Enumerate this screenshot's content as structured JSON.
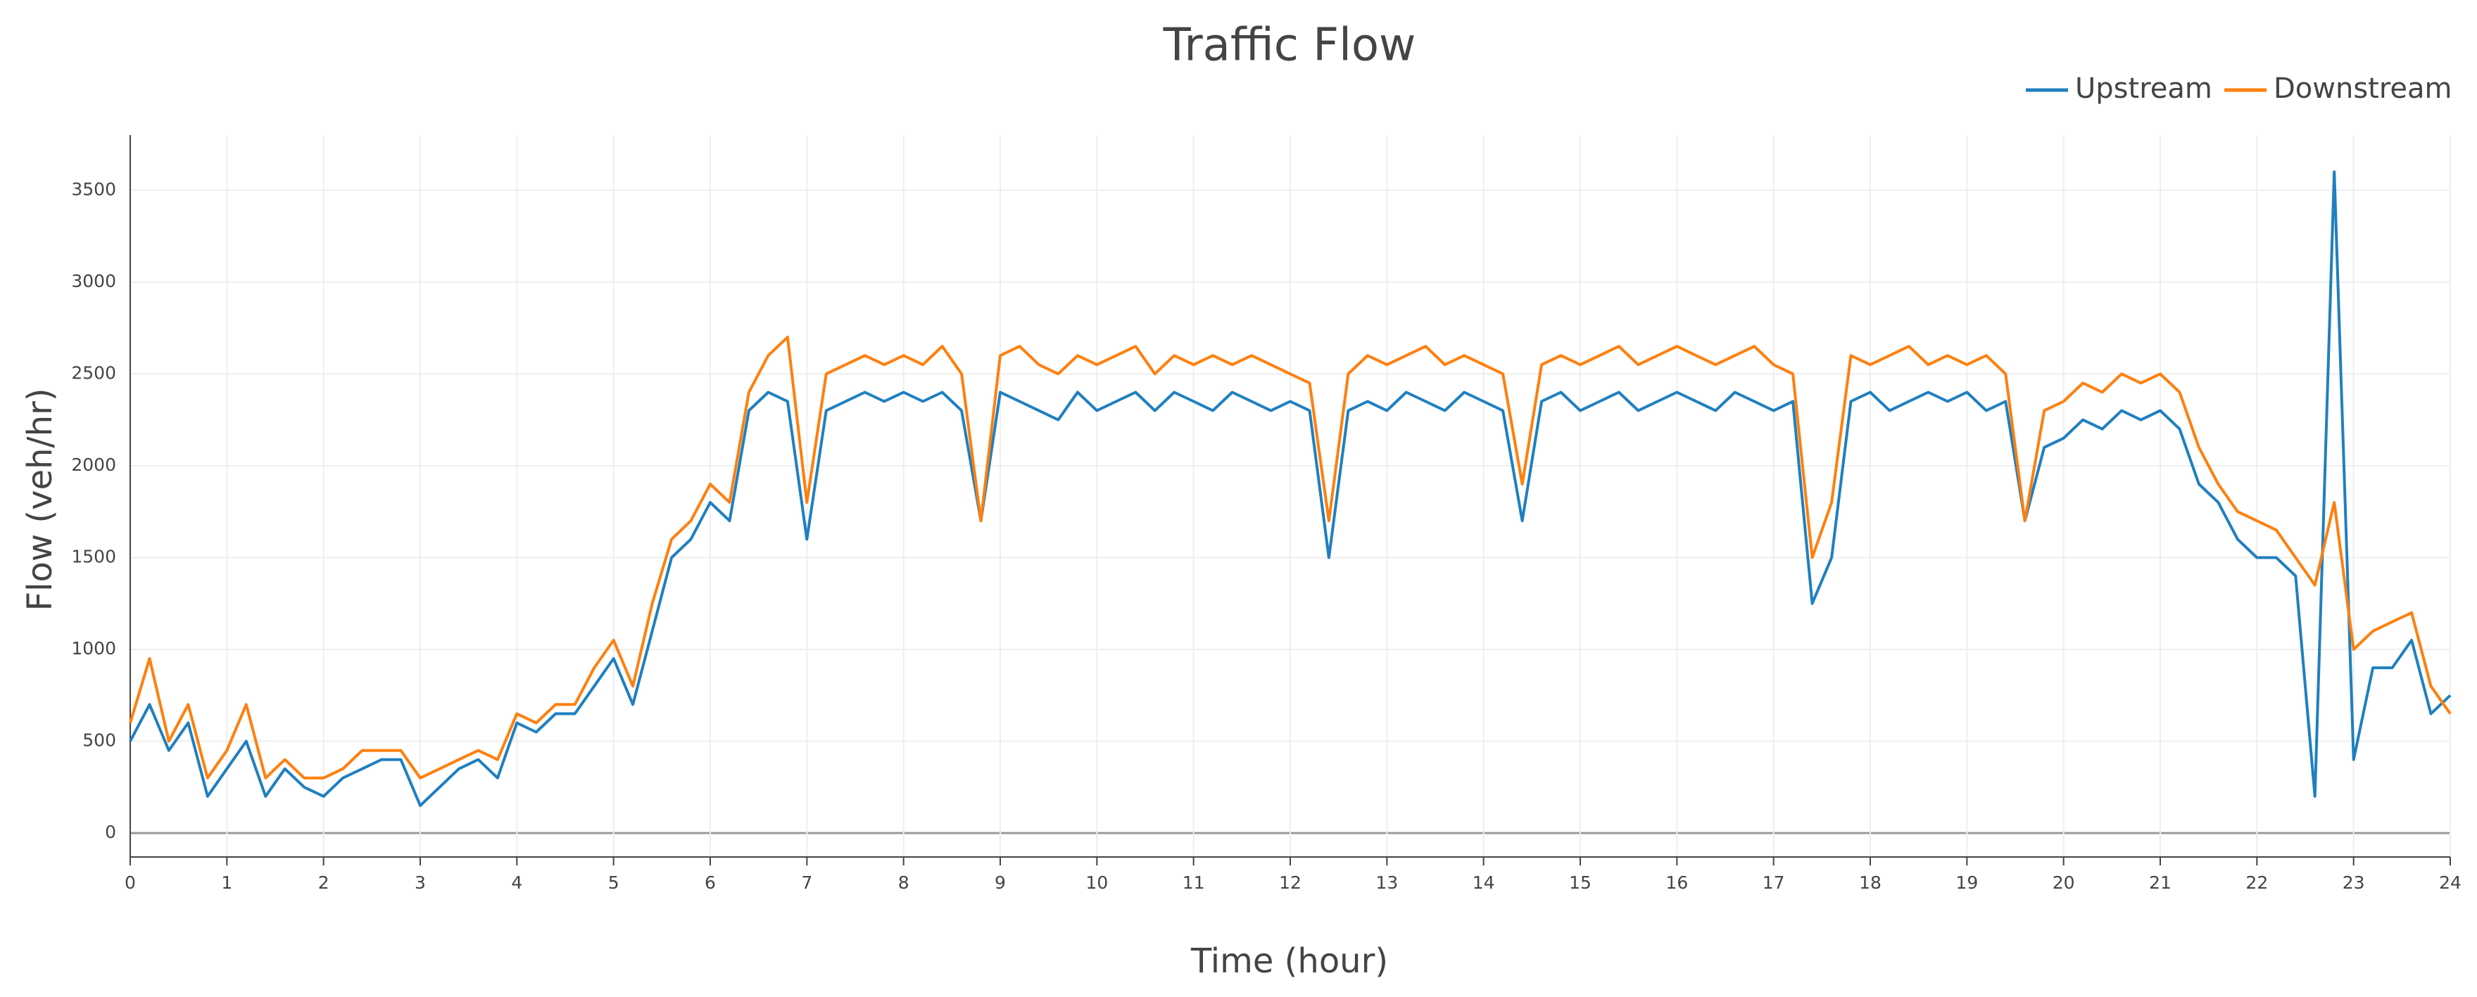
{
  "chart_data": {
    "type": "line",
    "title": "Traffic Flow",
    "x_label": "Time (hour)",
    "y_label": "Flow (veh/hr)",
    "x": [
      0,
      0.2,
      0.4,
      0.6,
      0.8,
      1,
      1.2,
      1.4,
      1.6,
      1.8,
      2,
      2.2,
      2.4,
      2.6,
      2.8,
      3,
      3.2,
      3.4,
      3.6,
      3.8,
      4,
      4.2,
      4.4,
      4.6,
      4.8,
      5,
      5.2,
      5.4,
      5.6,
      5.8,
      6,
      6.2,
      6.4,
      6.6,
      6.8,
      7,
      7.2,
      7.4,
      7.6,
      7.8,
      8,
      8.2,
      8.4,
      8.6,
      8.8,
      9,
      9.2,
      9.4,
      9.6,
      9.8,
      10,
      10.2,
      10.4,
      10.6,
      10.8,
      11,
      11.2,
      11.4,
      11.6,
      11.8,
      12,
      12.2,
      12.4,
      12.6,
      12.8,
      13,
      13.2,
      13.4,
      13.6,
      13.8,
      14,
      14.2,
      14.4,
      14.6,
      14.8,
      15,
      15.2,
      15.4,
      15.6,
      15.8,
      16,
      16.2,
      16.4,
      16.6,
      16.8,
      17,
      17.2,
      17.4,
      17.6,
      17.8,
      18,
      18.2,
      18.4,
      18.6,
      18.8,
      19,
      19.2,
      19.4,
      19.6,
      19.8,
      20,
      20.2,
      20.4,
      20.6,
      20.8,
      21,
      21.2,
      21.4,
      21.6,
      21.8,
      22,
      22.2,
      22.4,
      22.6,
      22.8,
      23,
      23.2,
      23.4,
      23.6,
      23.8,
      24
    ],
    "series": [
      {
        "name": "Upstream",
        "color": "#1f7fc0",
        "values": [
          500,
          700,
          450,
          600,
          200,
          350,
          500,
          200,
          350,
          250,
          200,
          300,
          350,
          400,
          400,
          150,
          250,
          350,
          400,
          300,
          600,
          550,
          650,
          650,
          800,
          950,
          700,
          1100,
          1500,
          1600,
          1800,
          1700,
          2300,
          2400,
          2350,
          1600,
          2300,
          2350,
          2400,
          2350,
          2400,
          2350,
          2400,
          2300,
          1700,
          2400,
          2350,
          2300,
          2250,
          2400,
          2300,
          2350,
          2400,
          2300,
          2400,
          2350,
          2300,
          2400,
          2350,
          2300,
          2350,
          2300,
          1500,
          2300,
          2350,
          2300,
          2400,
          2350,
          2300,
          2400,
          2350,
          2300,
          1700,
          2350,
          2400,
          2300,
          2350,
          2400,
          2300,
          2350,
          2400,
          2350,
          2300,
          2400,
          2350,
          2300,
          2350,
          1250,
          1500,
          2350,
          2400,
          2300,
          2350,
          2400,
          2350,
          2400,
          2300,
          2350,
          1700,
          2100,
          2150,
          2250,
          2200,
          2300,
          2250,
          2300,
          2200,
          1900,
          1800,
          1600,
          1500,
          1500,
          1400,
          200,
          3600,
          400,
          900,
          900,
          1050,
          650,
          750
        ]
      },
      {
        "name": "Downstream",
        "color": "#ff7f0e",
        "values": [
          600,
          950,
          500,
          700,
          300,
          450,
          700,
          300,
          400,
          300,
          300,
          350,
          450,
          450,
          450,
          300,
          350,
          400,
          450,
          400,
          650,
          600,
          700,
          700,
          900,
          1050,
          800,
          1250,
          1600,
          1700,
          1900,
          1800,
          2400,
          2600,
          2700,
          1800,
          2500,
          2550,
          2600,
          2550,
          2600,
          2550,
          2650,
          2500,
          1700,
          2600,
          2650,
          2550,
          2500,
          2600,
          2550,
          2600,
          2650,
          2500,
          2600,
          2550,
          2600,
          2550,
          2600,
          2550,
          2500,
          2450,
          1700,
          2500,
          2600,
          2550,
          2600,
          2650,
          2550,
          2600,
          2550,
          2500,
          1900,
          2550,
          2600,
          2550,
          2600,
          2650,
          2550,
          2600,
          2650,
          2600,
          2550,
          2600,
          2650,
          2550,
          2500,
          1500,
          1800,
          2600,
          2550,
          2600,
          2650,
          2550,
          2600,
          2550,
          2600,
          2500,
          1700,
          2300,
          2350,
          2450,
          2400,
          2500,
          2450,
          2500,
          2400,
          2100,
          1900,
          1750,
          1700,
          1650,
          1500,
          1350,
          1800,
          1000,
          1100,
          1150,
          1200,
          800,
          650
        ]
      }
    ],
    "xlim": [
      0,
      24
    ],
    "xticks": [
      0,
      1,
      2,
      3,
      4,
      5,
      6,
      7,
      8,
      9,
      10,
      11,
      12,
      13,
      14,
      15,
      16,
      17,
      18,
      19,
      20,
      21,
      22,
      23,
      24
    ],
    "ylim": [
      -130,
      3800
    ],
    "yticks": [
      0,
      500,
      1000,
      1500,
      2000,
      2500,
      3000,
      3500
    ],
    "grid": true,
    "legend": "top-right"
  }
}
